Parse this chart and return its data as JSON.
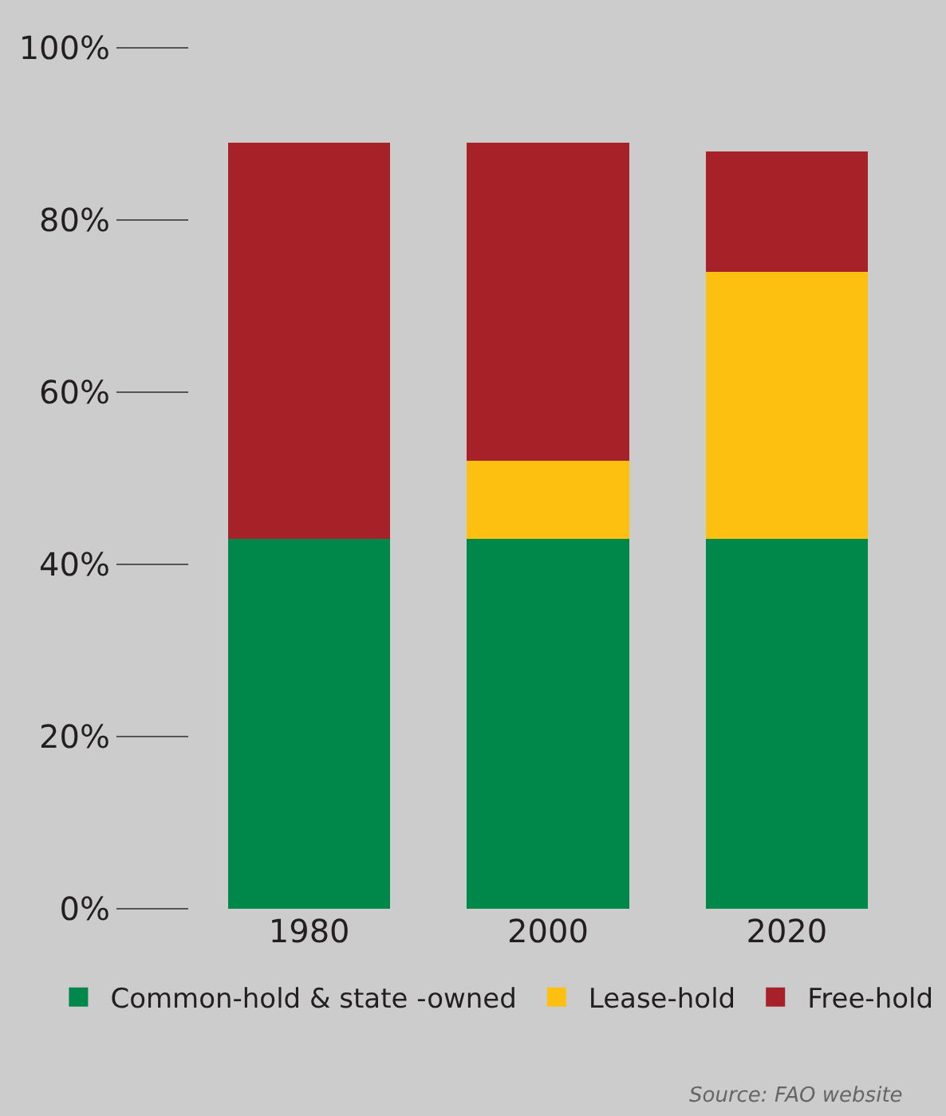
{
  "chart_data": {
    "type": "bar",
    "stacked": true,
    "categories": [
      "1980",
      "2000",
      "2020"
    ],
    "series": [
      {
        "name": "Common-hold & state -owned",
        "color": "#00874a",
        "values": [
          43,
          43,
          43
        ]
      },
      {
        "name": "Lease-hold",
        "color": "#fdc010",
        "values": [
          0,
          9,
          31
        ]
      },
      {
        "name": "Free-hold",
        "color": "#a62128",
        "values": [
          46,
          37,
          14
        ]
      }
    ],
    "ylim": [
      0,
      100
    ],
    "yticks": [
      {
        "value": 0,
        "label": "0%"
      },
      {
        "value": 20,
        "label": "20%"
      },
      {
        "value": 40,
        "label": "40%"
      },
      {
        "value": 60,
        "label": "60%"
      },
      {
        "value": 80,
        "label": "80%"
      },
      {
        "value": 100,
        "label": "100%"
      }
    ],
    "grid": false,
    "legend": "bottom",
    "annotations": [
      "Source: FAO website"
    ]
  }
}
